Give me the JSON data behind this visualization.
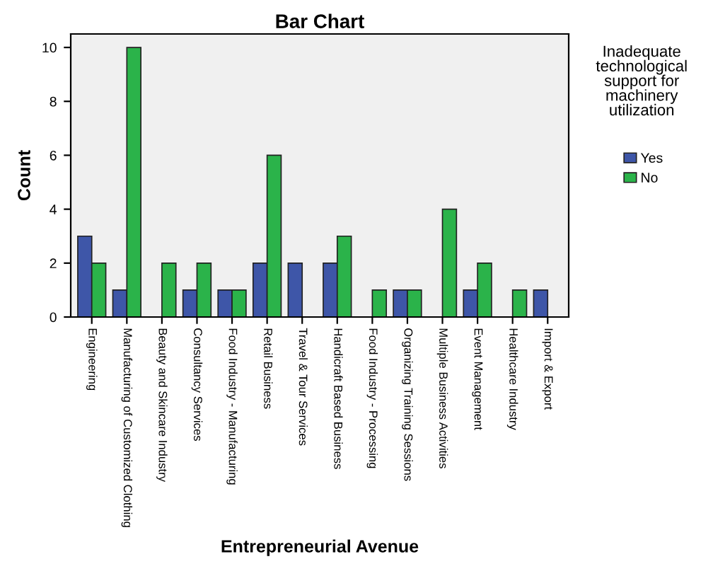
{
  "chart_data": {
    "type": "bar",
    "title": "Bar Chart",
    "xlabel": "Entrepreneurial Avenue",
    "ylabel": "Count",
    "legend_title": "Inadequate technological support for machinery utilization",
    "categories": [
      "Engineering",
      "Manufacturing of Customized Clothing",
      "Beauty and Skincare Industry",
      "Consultancy Services",
      "Food Industry - Manufacturing",
      "Retail Business",
      "Travel & Tour Services",
      "Handicraft Based Business",
      "Food Industry - Processing",
      "Organizing Training Sessions",
      "Multiple Business Activities",
      "Event Management",
      "Healthcare Industry",
      "Import & Export"
    ],
    "series": [
      {
        "name": "Yes",
        "color": "#3e56a8",
        "values": [
          3,
          1,
          null,
          1,
          1,
          2,
          2,
          2,
          null,
          1,
          null,
          1,
          null,
          1
        ]
      },
      {
        "name": "No",
        "color": "#2bb34a",
        "values": [
          2,
          10,
          2,
          2,
          1,
          6,
          null,
          3,
          1,
          1,
          4,
          2,
          1,
          null
        ]
      }
    ],
    "ylim": [
      0,
      10.5
    ],
    "yticks": [
      0,
      2,
      4,
      6,
      8,
      10
    ],
    "grid": false,
    "legend": "right"
  }
}
